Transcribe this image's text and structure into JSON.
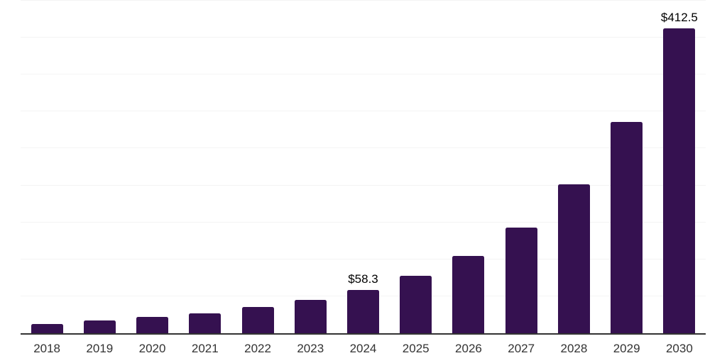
{
  "chart_data": {
    "type": "bar",
    "title": "",
    "xlabel": "",
    "ylabel": "",
    "categories": [
      "2018",
      "2019",
      "2020",
      "2021",
      "2022",
      "2023",
      "2024",
      "2025",
      "2026",
      "2027",
      "2028",
      "2029",
      "2030"
    ],
    "values": [
      12.5,
      17.3,
      22.4,
      27.0,
      35.2,
      44.8,
      58.3,
      77.4,
      104.6,
      143.3,
      201.5,
      286.2,
      412.5
    ],
    "value_labels": {
      "2024": "$58.3",
      "2030": "$412.5"
    },
    "ylim": [
      0,
      450
    ],
    "gridline_step": 50,
    "grid": true,
    "y_axis_tick_labels_visible": false,
    "legend_visible": false,
    "currency_prefix": "$"
  },
  "colors": {
    "bar": "#351150",
    "gridline": "#f4f4f4",
    "axis": "#333333",
    "tick_label": "#333333",
    "value_label": "#000000",
    "background": "#ffffff"
  }
}
